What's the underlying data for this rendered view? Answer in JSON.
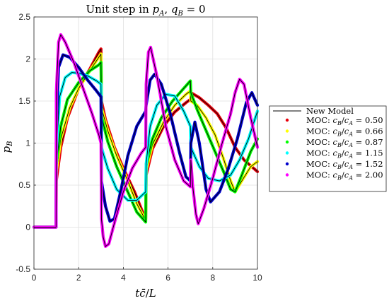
{
  "chart_data": {
    "type": "line",
    "title": "Unit step in p_A, q_B = 0",
    "title_parts": {
      "t1": "Unit step in ",
      "pA": "p",
      "pAsub": "A",
      "comma": ", ",
      "qB": "q",
      "qBsub": "B",
      "eq": " = 0"
    },
    "xlabel": "t c̄ / L",
    "xlabel_parts": {
      "t": "t",
      "c": "c̄",
      "slash": "/",
      "L": "L"
    },
    "ylabel": "p_B",
    "ylabel_parts": {
      "p": "p",
      "sub": "B"
    },
    "xlim": [
      0,
      10
    ],
    "ylim": [
      -0.5,
      2.5
    ],
    "xticks": [
      0,
      2,
      4,
      6,
      8,
      10
    ],
    "yticks": [
      -0.5,
      0,
      0.5,
      1,
      1.5,
      2,
      2.5
    ],
    "xtick_labels": [
      "0",
      "2",
      "4",
      "6",
      "8",
      "10"
    ],
    "ytick_labels": [
      "-0.5",
      "0",
      "0.5",
      "1",
      "1.5",
      "2",
      "2.5"
    ],
    "grid": true,
    "legend_position": "outside-right",
    "legend": {
      "model_label": "New Model",
      "moc_prefix": "MOC: ",
      "ratio_c": "c",
      "ratio_B": "B",
      "ratio_A": "A",
      "ratio_slash": "/",
      "ratio_eq": " = "
    },
    "series": [
      {
        "name": "MOC: c_B/c_A = 0.50",
        "ratio_value": "0.50",
        "color": "#e8000b",
        "points": [
          [
            0,
            0
          ],
          [
            0.99,
            0
          ],
          [
            1.0,
            0.55
          ],
          [
            1.2,
            0.95
          ],
          [
            1.5,
            1.3
          ],
          [
            2.0,
            1.65
          ],
          [
            2.5,
            1.88
          ],
          [
            2.9,
            2.08
          ],
          [
            3.0,
            2.12
          ],
          [
            3.02,
            1.5
          ],
          [
            3.2,
            1.28
          ],
          [
            3.6,
            0.95
          ],
          [
            4.0,
            0.7
          ],
          [
            4.5,
            0.42
          ],
          [
            4.8,
            0.22
          ],
          [
            5.0,
            0.1
          ],
          [
            5.02,
            0.62
          ],
          [
            5.3,
            0.93
          ],
          [
            5.8,
            1.2
          ],
          [
            6.3,
            1.37
          ],
          [
            6.8,
            1.48
          ],
          [
            7.0,
            1.52
          ],
          [
            7.02,
            1.6
          ],
          [
            7.4,
            1.54
          ],
          [
            7.8,
            1.45
          ],
          [
            8.2,
            1.35
          ],
          [
            8.6,
            1.18
          ],
          [
            9.0,
            0.95
          ],
          [
            9.4,
            0.8
          ],
          [
            10.0,
            0.66
          ]
        ]
      },
      {
        "name": "MOC: c_B/c_A = 0.66",
        "ratio_value": "0.66",
        "color": "#ffff00",
        "points": [
          [
            0,
            0
          ],
          [
            0.99,
            0
          ],
          [
            1.0,
            0.65
          ],
          [
            1.2,
            1.05
          ],
          [
            1.6,
            1.42
          ],
          [
            2.0,
            1.65
          ],
          [
            2.5,
            1.86
          ],
          [
            2.9,
            2.02
          ],
          [
            3.0,
            2.06
          ],
          [
            3.02,
            1.42
          ],
          [
            3.3,
            1.15
          ],
          [
            3.7,
            0.85
          ],
          [
            4.2,
            0.55
          ],
          [
            4.6,
            0.28
          ],
          [
            5.0,
            0.08
          ],
          [
            5.02,
            0.68
          ],
          [
            5.3,
            0.98
          ],
          [
            5.8,
            1.25
          ],
          [
            6.3,
            1.45
          ],
          [
            6.8,
            1.58
          ],
          [
            7.0,
            1.62
          ],
          [
            7.02,
            1.5
          ],
          [
            7.3,
            1.45
          ],
          [
            7.7,
            1.3
          ],
          [
            8.1,
            1.1
          ],
          [
            8.5,
            0.8
          ],
          [
            8.8,
            0.55
          ],
          [
            9.0,
            0.42
          ],
          [
            9.3,
            0.55
          ],
          [
            9.7,
            0.72
          ],
          [
            10.0,
            0.78
          ]
        ]
      },
      {
        "name": "MOC: c_B/c_A = 0.87",
        "ratio_value": "0.87",
        "color": "#00ff00",
        "points": [
          [
            0,
            0
          ],
          [
            0.99,
            0
          ],
          [
            1.0,
            0.75
          ],
          [
            1.2,
            1.2
          ],
          [
            1.5,
            1.52
          ],
          [
            2.0,
            1.72
          ],
          [
            2.5,
            1.86
          ],
          [
            2.9,
            1.93
          ],
          [
            3.0,
            1.96
          ],
          [
            3.02,
            1.32
          ],
          [
            3.3,
            1.02
          ],
          [
            3.7,
            0.72
          ],
          [
            4.2,
            0.42
          ],
          [
            4.6,
            0.18
          ],
          [
            5.0,
            0.06
          ],
          [
            5.02,
            0.75
          ],
          [
            5.3,
            1.05
          ],
          [
            5.7,
            1.3
          ],
          [
            6.2,
            1.5
          ],
          [
            6.7,
            1.65
          ],
          [
            7.0,
            1.74
          ],
          [
            7.02,
            1.6
          ],
          [
            7.3,
            1.4
          ],
          [
            7.7,
            1.15
          ],
          [
            8.1,
            0.9
          ],
          [
            8.5,
            0.65
          ],
          [
            8.8,
            0.45
          ],
          [
            9.0,
            0.42
          ],
          [
            9.3,
            0.62
          ],
          [
            9.7,
            0.9
          ],
          [
            10.0,
            1.05
          ]
        ]
      },
      {
        "name": "MOC: c_B/c_A = 1.15",
        "ratio_value": "1.15",
        "color": "#00ffff",
        "points": [
          [
            0,
            0
          ],
          [
            0.99,
            0
          ],
          [
            1.0,
            0.9
          ],
          [
            1.15,
            1.55
          ],
          [
            1.4,
            1.78
          ],
          [
            1.7,
            1.84
          ],
          [
            2.0,
            1.83
          ],
          [
            2.4,
            1.8
          ],
          [
            2.8,
            1.74
          ],
          [
            3.0,
            1.7
          ],
          [
            3.02,
            0.95
          ],
          [
            3.3,
            0.7
          ],
          [
            3.7,
            0.45
          ],
          [
            4.2,
            0.32
          ],
          [
            4.6,
            0.32
          ],
          [
            5.0,
            0.42
          ],
          [
            5.02,
            0.75
          ],
          [
            5.2,
            1.2
          ],
          [
            5.5,
            1.45
          ],
          [
            5.9,
            1.58
          ],
          [
            6.3,
            1.56
          ],
          [
            6.7,
            1.38
          ],
          [
            7.0,
            1.2
          ],
          [
            7.02,
            0.95
          ],
          [
            7.4,
            0.72
          ],
          [
            7.8,
            0.58
          ],
          [
            8.3,
            0.55
          ],
          [
            8.8,
            0.62
          ],
          [
            9.2,
            0.8
          ],
          [
            9.6,
            1.05
          ],
          [
            10.0,
            1.38
          ]
        ]
      },
      {
        "name": "MOC: c_B/c_A = 1.52",
        "ratio_value": "1.52",
        "color": "#0000cc",
        "points": [
          [
            0,
            0
          ],
          [
            0.99,
            0
          ],
          [
            1.0,
            1.2
          ],
          [
            1.1,
            1.9
          ],
          [
            1.3,
            2.05
          ],
          [
            1.6,
            2.02
          ],
          [
            2.0,
            1.9
          ],
          [
            2.4,
            1.75
          ],
          [
            2.8,
            1.62
          ],
          [
            3.0,
            1.55
          ],
          [
            3.02,
            0.55
          ],
          [
            3.2,
            0.25
          ],
          [
            3.4,
            0.07
          ],
          [
            3.6,
            0.1
          ],
          [
            3.9,
            0.45
          ],
          [
            4.2,
            0.85
          ],
          [
            4.6,
            1.2
          ],
          [
            5.0,
            1.38
          ],
          [
            5.02,
            1.45
          ],
          [
            5.2,
            1.75
          ],
          [
            5.4,
            1.82
          ],
          [
            5.7,
            1.7
          ],
          [
            6.1,
            1.35
          ],
          [
            6.5,
            0.9
          ],
          [
            6.8,
            0.6
          ],
          [
            7.0,
            0.55
          ],
          [
            7.02,
            1.0
          ],
          [
            7.2,
            1.25
          ],
          [
            7.4,
            1.0
          ],
          [
            7.7,
            0.45
          ],
          [
            7.9,
            0.3
          ],
          [
            8.3,
            0.42
          ],
          [
            8.7,
            0.7
          ],
          [
            9.1,
            1.05
          ],
          [
            9.5,
            1.48
          ],
          [
            9.75,
            1.6
          ],
          [
            10.0,
            1.45
          ]
        ]
      },
      {
        "name": "MOC: c_B/c_A = 2.00",
        "ratio_value": "2.00",
        "color": "#ff00ff",
        "points": [
          [
            0,
            0
          ],
          [
            0.99,
            0
          ],
          [
            1.0,
            1.6
          ],
          [
            1.1,
            2.2
          ],
          [
            1.2,
            2.29
          ],
          [
            1.4,
            2.2
          ],
          [
            1.8,
            1.95
          ],
          [
            2.2,
            1.65
          ],
          [
            2.6,
            1.35
          ],
          [
            2.9,
            1.1
          ],
          [
            3.0,
            1.0
          ],
          [
            3.02,
            0.1
          ],
          [
            3.1,
            -0.12
          ],
          [
            3.2,
            -0.23
          ],
          [
            3.35,
            -0.2
          ],
          [
            3.6,
            0.05
          ],
          [
            4.0,
            0.42
          ],
          [
            4.4,
            0.7
          ],
          [
            4.8,
            0.88
          ],
          [
            5.0,
            0.95
          ],
          [
            5.02,
            1.7
          ],
          [
            5.12,
            2.08
          ],
          [
            5.22,
            2.14
          ],
          [
            5.5,
            1.8
          ],
          [
            5.9,
            1.2
          ],
          [
            6.3,
            0.8
          ],
          [
            6.7,
            0.55
          ],
          [
            7.0,
            0.48
          ],
          [
            7.02,
            0.8
          ],
          [
            7.1,
            0.5
          ],
          [
            7.25,
            0.15
          ],
          [
            7.35,
            0.04
          ],
          [
            7.6,
            0.22
          ],
          [
            8.0,
            0.58
          ],
          [
            8.4,
            0.98
          ],
          [
            8.8,
            1.35
          ],
          [
            9.0,
            1.6
          ],
          [
            9.2,
            1.76
          ],
          [
            9.4,
            1.7
          ],
          [
            9.7,
            1.3
          ],
          [
            10.0,
            0.95
          ]
        ]
      }
    ],
    "model_line_color": "#000000"
  }
}
